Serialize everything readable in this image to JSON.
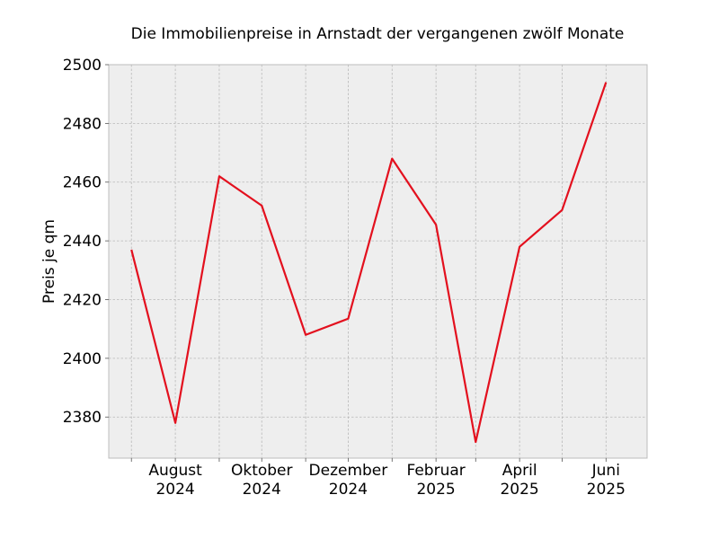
{
  "chart_data": {
    "type": "line",
    "title": "Die Immobilienpreise in Arnstadt der vergangenen zwölf Monate",
    "xlabel": "",
    "ylabel": "Preis je qm",
    "x": [
      "2024-07",
      "2024-08",
      "2024-09",
      "2024-10",
      "2024-11",
      "2024-12",
      "2025-01",
      "2025-02",
      "2025-03",
      "2025-04",
      "2025-05",
      "2025-06"
    ],
    "series": [
      {
        "values": [
          2437,
          2378,
          2462,
          2452,
          2408,
          2413.5,
          2468,
          2445.5,
          2371.5,
          2438,
          2450.5,
          2494
        ]
      }
    ],
    "x_tick_labels": [
      {
        "x": "2024-08",
        "lines": [
          "August",
          "2024"
        ]
      },
      {
        "x": "2024-10",
        "lines": [
          "Oktober",
          "2024"
        ]
      },
      {
        "x": "2024-12",
        "lines": [
          "Dezember",
          "2024"
        ]
      },
      {
        "x": "2025-02",
        "lines": [
          "Februar",
          "2025"
        ]
      },
      {
        "x": "2025-04",
        "lines": [
          "April",
          "2025"
        ]
      },
      {
        "x": "2025-06",
        "lines": [
          "Juni",
          "2025"
        ]
      }
    ],
    "y_ticks": [
      2380,
      2400,
      2420,
      2440,
      2460,
      2480,
      2500
    ],
    "ylim": [
      2366,
      2500
    ],
    "xlim": [
      "2024-06-15",
      "2025-06-30"
    ],
    "grid": true,
    "colors": {
      "line": "#e3101e",
      "plot_background": "#eeeeee",
      "grid": "#b8b8b8",
      "frame": "#bcbcbc"
    }
  }
}
